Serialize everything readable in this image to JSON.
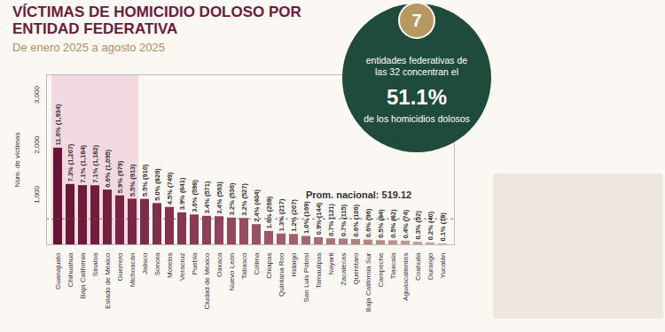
{
  "chart_data": {
    "type": "bar",
    "title": "VÍCTIMAS DE HOMICIDIO DOLOSO POR ENTIDAD FEDERATIVA",
    "subtitle": "De enero 2025 a agosto 2025",
    "y_label": "Núm. de víctimas",
    "categories": [
      "Guanajuato",
      "Chihuahua",
      "Baja California",
      "Sinaloa",
      "Estado de México",
      "Guerrero",
      "Michoacán",
      "Jalisco",
      "Sonora",
      "Morelos",
      "Veracruz",
      "Puebla",
      "Ciudad de México",
      "Oaxaca",
      "Nuevo León",
      "Tabasco",
      "Colima",
      "Chiapas",
      "Quintana Roo",
      "Hidalgo",
      "San Luis Potosí",
      "Tamaulipas",
      "Nayarit",
      "Zacatecas",
      "Querétaro",
      "Baja California Sur",
      "Campeche",
      "Tlaxcala",
      "Aguascalientes",
      "Coahuila",
      "Durango",
      "Yucatán"
    ],
    "values": [
      1934,
      1207,
      1184,
      1182,
      1095,
      979,
      913,
      910,
      826,
      749,
      641,
      598,
      571,
      563,
      536,
      527,
      404,
      268,
      217,
      207,
      169,
      144,
      121,
      115,
      106,
      96,
      84,
      82,
      74,
      52,
      40,
      18
    ],
    "value_labels": [
      "11.6% (1,934)",
      "7.3% (1,207)",
      "7.1% (1,184)",
      "7.1% (1,182)",
      "6.6% (1,095)",
      "5.9% (979)",
      "5.5% (913)",
      "5.5% (910)",
      "5.0% (826)",
      "4.5% (749)",
      "3.9% (641)",
      "3.6% (598)",
      "3.4% (571)",
      "3.4% (563)",
      "3.2% (536)",
      "3.2% (527)",
      "2.4% (404)",
      "1.6% (268)",
      "1.3% (217)",
      "1.2% (207)",
      "1.0% (169)",
      "0.9% (144)",
      "0.7% (121)",
      "0.7% (115)",
      "0.6% (106)",
      "0.6% (96)",
      "0.5% (84)",
      "0.5% (82)",
      "0.4% (74)",
      "0.3% (52)",
      "0.2% (40)",
      "0.1% (18)"
    ],
    "colors": [
      "#6a1434",
      "#6d1737",
      "#701a3a",
      "#721d3c",
      "#75203f",
      "#782342",
      "#7b2645",
      "#7e2a48",
      "#812e4b",
      "#84324e",
      "#873651",
      "#8a3a54",
      "#8d3f57",
      "#90435a",
      "#93485d",
      "#964d60",
      "#995263",
      "#9c5766",
      "#9f5d69",
      "#a2626c",
      "#a5686f",
      "#a86e73",
      "#ab7477",
      "#ae7a7b",
      "#b1807f",
      "#b48683",
      "#b78c87",
      "#ba928b",
      "#bd988f",
      "#c09e94",
      "#c3a499",
      "#c6aa9e"
    ],
    "ylim": [
      0,
      3400
    ],
    "yticks": [
      {
        "value": 1000,
        "label": "1,000"
      },
      {
        "value": 2000,
        "label": "2,000"
      },
      {
        "value": 3000,
        "label": "3,000"
      }
    ],
    "grid": false,
    "data_labels": true,
    "highlight": [
      "Guanajuato",
      "Chihuahua",
      "Baja California",
      "Sinaloa",
      "Estado de México",
      "Guerrero",
      "Michoacán"
    ],
    "average": {
      "value": 519.12,
      "label": "Prom. nacional: 519.12"
    },
    "callout": {
      "number": "7",
      "text_before": "entidades federativas de las 32 concentran el",
      "percent": "51.1%",
      "text_after": "de los homicidios dolosos"
    }
  }
}
